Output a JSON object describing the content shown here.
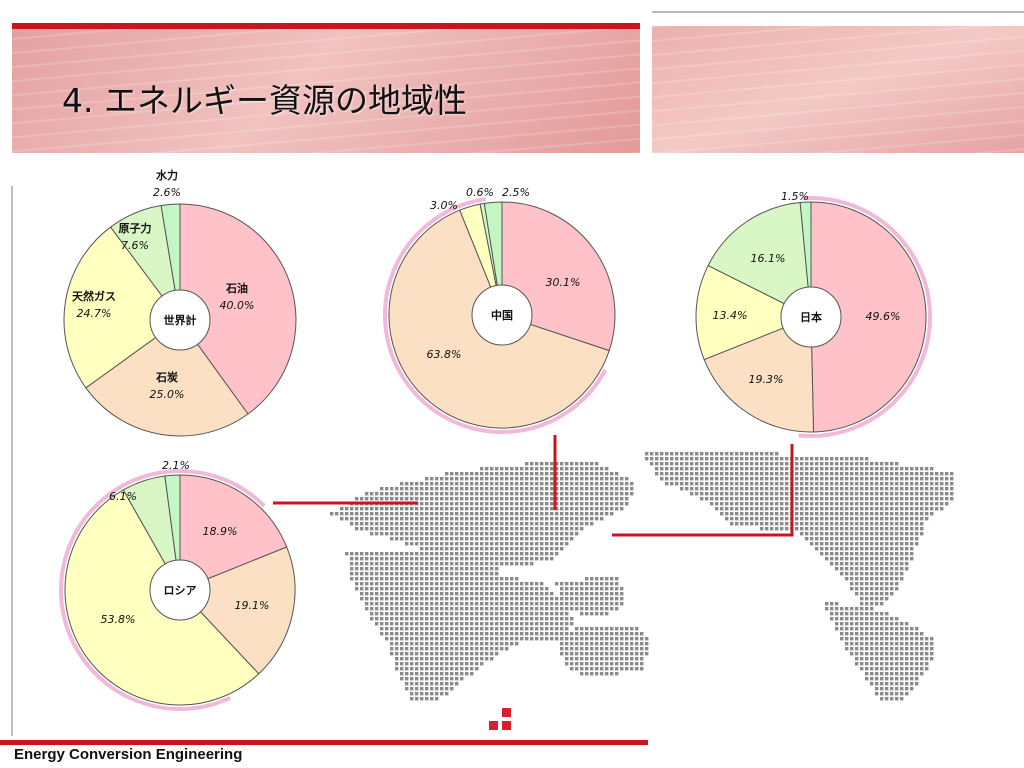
{
  "title": "4. エネルギー資源の地域性",
  "footer": "Energy Conversion Engineering",
  "colors": {
    "oil": "#ffc2c8",
    "coal": "#fce0c3",
    "gas": "#ffffc0",
    "nuclear": "#d9f7c4",
    "hydro": "#c4f5c4",
    "ring": "#f2b8d8",
    "connector": "#c8161d",
    "map_dot": "#8a8a8a"
  },
  "chart_data": [
    {
      "type": "pie",
      "name": "世界計",
      "slices": [
        {
          "label": "石油",
          "value": 40.0,
          "text": "40.0%"
        },
        {
          "label": "石炭",
          "value": 25.0,
          "text": "25.0%"
        },
        {
          "label": "天然ガス",
          "value": 24.7,
          "text": "24.7%"
        },
        {
          "label": "原子力",
          "value": 7.6,
          "text": "7.6%"
        },
        {
          "label": "水力",
          "value": 2.6,
          "text": "2.6%"
        }
      ]
    },
    {
      "type": "pie",
      "name": "中国",
      "slices": [
        {
          "label": "",
          "value": 30.1,
          "text": "30.1%"
        },
        {
          "label": "",
          "value": 63.8,
          "text": "63.8%"
        },
        {
          "label": "",
          "value": 3.0,
          "text": "3.0%"
        },
        {
          "label": "",
          "value": 0.6,
          "text": "0.6%"
        },
        {
          "label": "",
          "value": 2.5,
          "text": "2.5%"
        }
      ]
    },
    {
      "type": "pie",
      "name": "日本",
      "slices": [
        {
          "label": "",
          "value": 49.6,
          "text": "49.6%"
        },
        {
          "label": "",
          "value": 19.3,
          "text": "19.3%"
        },
        {
          "label": "",
          "value": 13.4,
          "text": "13.4%"
        },
        {
          "label": "",
          "value": 16.1,
          "text": "16.1%"
        },
        {
          "label": "",
          "value": 1.5,
          "text": "1.5%"
        }
      ]
    },
    {
      "type": "pie",
      "name": "ロシア",
      "slices": [
        {
          "label": "",
          "value": 18.9,
          "text": "18.9%"
        },
        {
          "label": "",
          "value": 19.1,
          "text": "19.1%"
        },
        {
          "label": "",
          "value": 53.8,
          "text": "53.8%"
        },
        {
          "label": "",
          "value": 6.1,
          "text": "6.1%"
        },
        {
          "label": "",
          "value": 2.1,
          "text": "2.1%"
        }
      ]
    }
  ]
}
